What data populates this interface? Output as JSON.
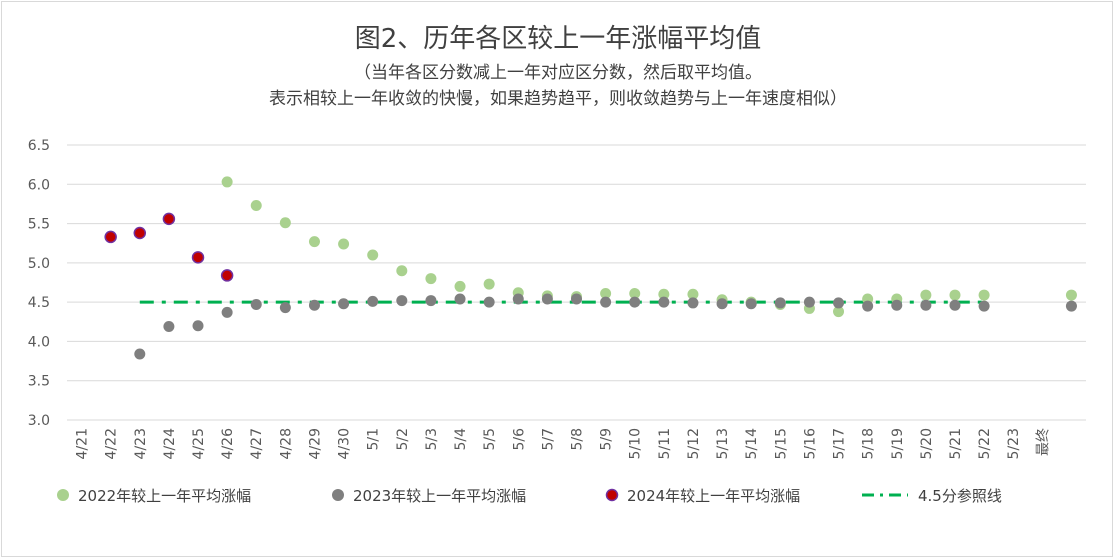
{
  "title": "图2、历年各区较上一年涨幅平均值",
  "subtitle_line1": "（当年各区分数减上一年对应区分数，然后取平均值。",
  "subtitle_line2": "表示相较上一年收敛的快慢，如果趋势趋平，则收敛趋势与上一年速度相似）",
  "chart_data": {
    "type": "scatter",
    "title": "图2、历年各区较上一年涨幅平均值",
    "categories": [
      "4/21",
      "4/22",
      "4/23",
      "4/24",
      "4/25",
      "4/26",
      "4/27",
      "4/28",
      "4/29",
      "4/30",
      "5/1",
      "5/2",
      "5/3",
      "5/4",
      "5/5",
      "5/6",
      "5/7",
      "5/8",
      "5/9",
      "5/10",
      "5/11",
      "5/12",
      "5/13",
      "5/14",
      "5/15",
      "5/16",
      "5/17",
      "5/18",
      "5/19",
      "5/20",
      "5/21",
      "5/22",
      "5/23",
      "最终",
      ""
    ],
    "ylim": [
      3.0,
      6.5
    ],
    "yticks": [
      "3.0",
      "3.5",
      "4.0",
      "4.5",
      "5.0",
      "5.5",
      "6.0",
      "6.5"
    ],
    "grid": true,
    "legend_position": "bottom",
    "series": [
      {
        "name": "2022年较上一年平均涨幅",
        "color": "#a9d18e",
        "marker": "circle",
        "values": [
          null,
          null,
          null,
          null,
          null,
          6.03,
          5.73,
          5.51,
          5.27,
          5.24,
          5.1,
          4.9,
          4.8,
          4.7,
          4.73,
          4.62,
          4.58,
          4.57,
          4.61,
          4.61,
          4.6,
          4.6,
          4.53,
          4.5,
          4.47,
          4.42,
          4.38,
          4.54,
          4.54,
          4.59,
          4.59,
          4.59,
          null,
          null,
          4.59
        ]
      },
      {
        "name": "2023年较上一年平均涨幅",
        "color": "#7f7f7f",
        "marker": "circle",
        "values": [
          null,
          null,
          3.84,
          4.19,
          4.2,
          4.37,
          4.47,
          4.43,
          4.46,
          4.48,
          4.51,
          4.52,
          4.52,
          4.54,
          4.5,
          4.54,
          4.54,
          4.54,
          4.5,
          4.5,
          4.5,
          4.49,
          4.48,
          4.48,
          4.49,
          4.5,
          4.49,
          4.45,
          4.46,
          4.46,
          4.46,
          4.45,
          null,
          null,
          4.45
        ]
      },
      {
        "name": "2024年较上一年平均涨幅",
        "color": "#c00000",
        "edge_color": "#7030a0",
        "marker": "circle",
        "values": [
          null,
          5.33,
          5.38,
          5.56,
          5.07,
          4.84,
          null,
          null,
          null,
          null,
          null,
          null,
          null,
          null,
          null,
          null,
          null,
          null,
          null,
          null,
          null,
          null,
          null,
          null,
          null,
          null,
          null,
          null,
          null,
          null,
          null,
          null,
          null,
          null,
          null
        ]
      },
      {
        "name": "4.5分参照线",
        "color": "#00b050",
        "line_style": "dash-dot",
        "values": [
          null,
          null,
          4.5,
          4.5,
          4.5,
          4.5,
          4.5,
          4.5,
          4.5,
          4.5,
          4.5,
          4.5,
          4.5,
          4.5,
          4.5,
          4.5,
          4.5,
          4.5,
          4.5,
          4.5,
          4.5,
          4.5,
          4.5,
          4.5,
          4.5,
          4.5,
          4.5,
          4.5,
          4.5,
          4.5,
          4.5,
          4.5,
          null,
          null,
          null
        ]
      }
    ]
  }
}
